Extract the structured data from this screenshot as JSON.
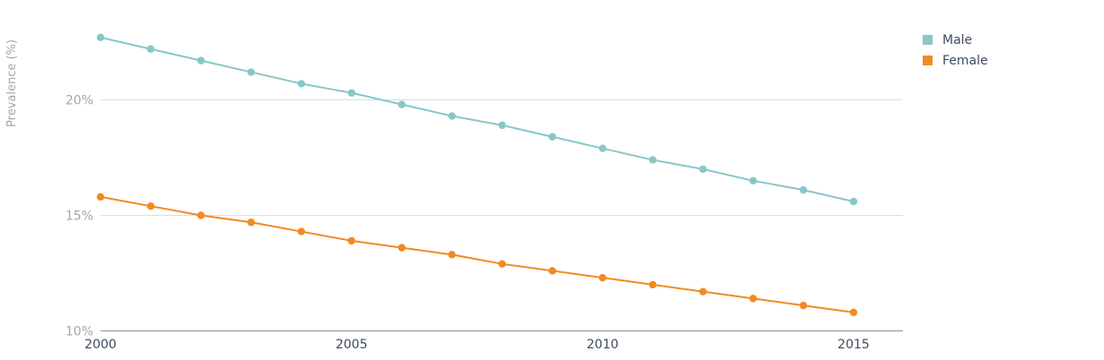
{
  "chart_data": {
    "type": "line",
    "title": "",
    "xlabel": "",
    "ylabel": "Prevalence (%)",
    "x": [
      2000,
      2001,
      2002,
      2003,
      2004,
      2005,
      2006,
      2007,
      2008,
      2009,
      2010,
      2011,
      2012,
      2013,
      2014,
      2015
    ],
    "xticks": [
      "2000",
      "2005",
      "2010",
      "2015"
    ],
    "yticks": [
      "20%",
      "15%",
      "10%"
    ],
    "ylim": [
      10,
      23
    ],
    "grid": true,
    "legend_position": "top-right",
    "series": [
      {
        "name": "Male",
        "color": "#88c7c8",
        "values": [
          22.7,
          22.2,
          21.7,
          21.2,
          20.7,
          20.3,
          19.8,
          19.3,
          18.9,
          18.4,
          17.9,
          17.4,
          17.0,
          16.5,
          16.1,
          15.6
        ]
      },
      {
        "name": "Female",
        "color": "#f18a22",
        "values": [
          15.8,
          15.4,
          15.0,
          14.7,
          14.3,
          13.9,
          13.6,
          13.3,
          12.9,
          12.6,
          12.3,
          12.0,
          11.7,
          11.4,
          11.1,
          10.8
        ]
      }
    ]
  }
}
